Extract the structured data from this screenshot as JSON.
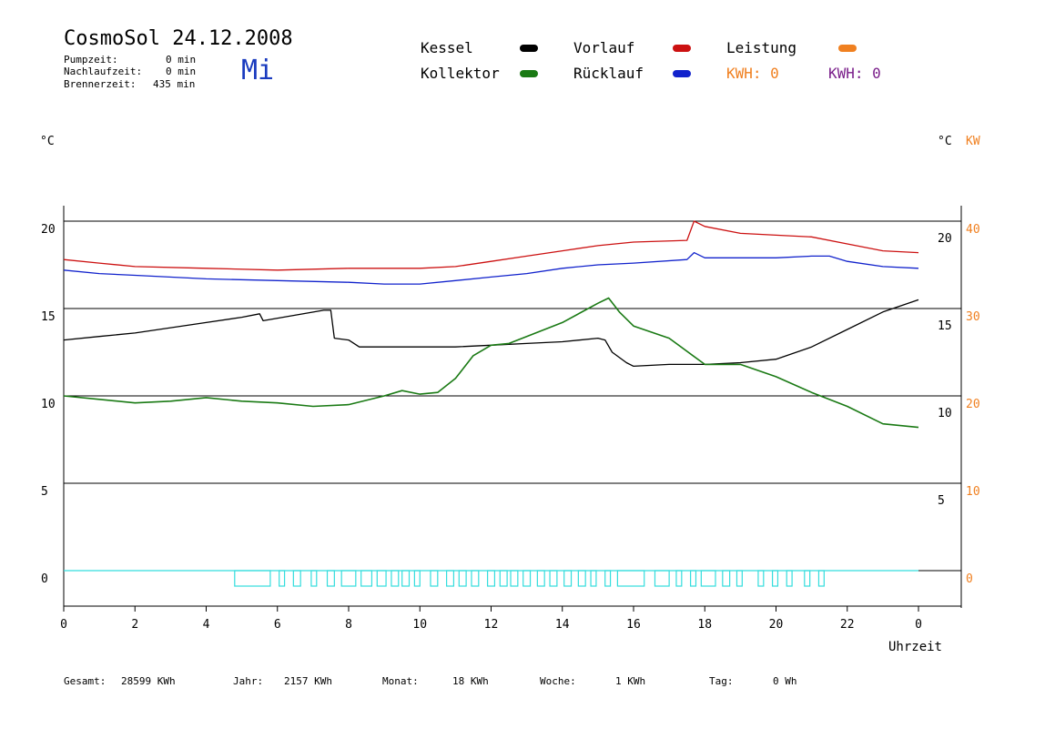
{
  "header": {
    "title": "CosmoSol 24.12.2008",
    "day": "Mi",
    "pumpzeit_label": "Pumpzeit:",
    "pumpzeit_value": "0 min",
    "nachlauf_label": "Nachlaufzeit:",
    "nachlauf_value": "0 min",
    "brenner_label": "Brennerzeit:",
    "brenner_value": "435 min"
  },
  "legend": {
    "kessel": "Kessel",
    "kollektor": "Kollektor",
    "vorlauf": "Vorlauf",
    "ruecklauf": "Rücklauf",
    "leistung": "Leistung",
    "kwh_orange": "KWH: 0",
    "kwh_purple": "KWH: 0",
    "colors": {
      "kessel": "#000000",
      "kollektor": "#1a7a14",
      "vorlauf": "#cc1111",
      "ruecklauf": "#1122cc",
      "leistung": "#f08020",
      "purple": "#7a1e8a",
      "pump": "#33dddd"
    }
  },
  "units": {
    "left": "°C",
    "right_c": "°C",
    "right_kw": "KW"
  },
  "footer": {
    "gesamt_label": "Gesamt:",
    "gesamt_value": "28599 KWh",
    "jahr_label": "Jahr:",
    "jahr_value": "2157 KWh",
    "monat_label": "Monat:",
    "monat_value": "18 KWh",
    "woche_label": "Woche:",
    "woche_value": "1 KWh",
    "tag_label": "Tag:",
    "tag_value": "0 Wh"
  },
  "chart_data": {
    "type": "line",
    "xlabel": "Uhrzeit",
    "x_ticks": [
      "0",
      "2",
      "4",
      "6",
      "8",
      "10",
      "12",
      "14",
      "16",
      "18",
      "20",
      "22",
      "0"
    ],
    "xlim": [
      0,
      24
    ],
    "ylim": [
      -2,
      21
    ],
    "y_ticks_left": [
      0,
      5,
      10,
      15,
      20
    ],
    "y_ticks_right_c": [
      5,
      10,
      15,
      20
    ],
    "y_ticks_right_kw": [
      0,
      10,
      20,
      30,
      40
    ],
    "grid": "horizontal",
    "series": [
      {
        "name": "Vorlauf",
        "color": "#cc1111",
        "points": [
          [
            0,
            17.8
          ],
          [
            1,
            17.6
          ],
          [
            2,
            17.4
          ],
          [
            4,
            17.3
          ],
          [
            6,
            17.2
          ],
          [
            8,
            17.3
          ],
          [
            10,
            17.3
          ],
          [
            11,
            17.4
          ],
          [
            12,
            17.7
          ],
          [
            13,
            18.0
          ],
          [
            14,
            18.3
          ],
          [
            15,
            18.6
          ],
          [
            16,
            18.8
          ],
          [
            17.5,
            18.9
          ],
          [
            17.7,
            20.0
          ],
          [
            18,
            19.7
          ],
          [
            19,
            19.3
          ],
          [
            20,
            19.2
          ],
          [
            21,
            19.1
          ],
          [
            22,
            18.7
          ],
          [
            23,
            18.3
          ],
          [
            24,
            18.2
          ]
        ]
      },
      {
        "name": "Rücklauf",
        "color": "#1122cc",
        "points": [
          [
            0,
            17.2
          ],
          [
            1,
            17.0
          ],
          [
            2,
            16.9
          ],
          [
            4,
            16.7
          ],
          [
            6,
            16.6
          ],
          [
            8,
            16.5
          ],
          [
            9,
            16.4
          ],
          [
            10,
            16.4
          ],
          [
            11,
            16.6
          ],
          [
            12,
            16.8
          ],
          [
            13,
            17.0
          ],
          [
            14,
            17.3
          ],
          [
            15,
            17.5
          ],
          [
            16,
            17.6
          ],
          [
            17.5,
            17.8
          ],
          [
            17.7,
            18.2
          ],
          [
            18,
            17.9
          ],
          [
            20,
            17.9
          ],
          [
            21,
            18.0
          ],
          [
            21.5,
            18.0
          ],
          [
            22,
            17.7
          ],
          [
            23,
            17.4
          ],
          [
            24,
            17.3
          ]
        ]
      },
      {
        "name": "Kessel",
        "color": "#000000",
        "points": [
          [
            0,
            13.2
          ],
          [
            1,
            13.4
          ],
          [
            2,
            13.6
          ],
          [
            3,
            13.9
          ],
          [
            4,
            14.2
          ],
          [
            5,
            14.5
          ],
          [
            5.5,
            14.7
          ],
          [
            5.6,
            14.3
          ],
          [
            7.3,
            14.9
          ],
          [
            7.5,
            14.9
          ],
          [
            7.6,
            13.3
          ],
          [
            8,
            13.2
          ],
          [
            8.3,
            12.8
          ],
          [
            9.5,
            12.8
          ],
          [
            10,
            12.8
          ],
          [
            11,
            12.8
          ],
          [
            12,
            12.9
          ],
          [
            13,
            13.0
          ],
          [
            14,
            13.1
          ],
          [
            15,
            13.3
          ],
          [
            15.2,
            13.2
          ],
          [
            15.4,
            12.5
          ],
          [
            15.8,
            11.9
          ],
          [
            16,
            11.7
          ],
          [
            17,
            11.8
          ],
          [
            18,
            11.8
          ],
          [
            19,
            11.9
          ],
          [
            20,
            12.1
          ],
          [
            21,
            12.8
          ],
          [
            22,
            13.8
          ],
          [
            23,
            14.8
          ],
          [
            24,
            15.5
          ]
        ]
      },
      {
        "name": "Kollektor",
        "color": "#1a7a14",
        "points": [
          [
            0,
            10.0
          ],
          [
            1,
            9.8
          ],
          [
            2,
            9.6
          ],
          [
            3,
            9.7
          ],
          [
            4,
            9.9
          ],
          [
            5,
            9.7
          ],
          [
            6,
            9.6
          ],
          [
            7,
            9.4
          ],
          [
            8,
            9.5
          ],
          [
            9,
            10.0
          ],
          [
            9.5,
            10.3
          ],
          [
            10,
            10.1
          ],
          [
            10.5,
            10.2
          ],
          [
            11,
            11.0
          ],
          [
            11.5,
            12.3
          ],
          [
            12,
            12.9
          ],
          [
            12.5,
            13.0
          ],
          [
            13,
            13.4
          ],
          [
            14,
            14.2
          ],
          [
            15,
            15.3
          ],
          [
            15.3,
            15.6
          ],
          [
            15.6,
            14.8
          ],
          [
            16,
            14.0
          ],
          [
            17,
            13.3
          ],
          [
            18,
            11.8
          ],
          [
            19,
            11.8
          ],
          [
            20,
            11.1
          ],
          [
            21,
            10.2
          ],
          [
            22,
            9.4
          ],
          [
            23,
            8.4
          ],
          [
            24,
            8.2
          ]
        ]
      }
    ],
    "pump_on_intervals": [
      [
        4.8,
        5.8
      ],
      [
        6.05,
        6.2
      ],
      [
        6.45,
        6.65
      ],
      [
        6.95,
        7.1
      ],
      [
        7.4,
        7.6
      ],
      [
        7.8,
        8.2
      ],
      [
        8.35,
        8.65
      ],
      [
        8.8,
        9.05
      ],
      [
        9.2,
        9.4
      ],
      [
        9.5,
        9.7
      ],
      [
        9.85,
        10.0
      ],
      [
        10.3,
        10.5
      ],
      [
        10.75,
        10.95
      ],
      [
        11.1,
        11.3
      ],
      [
        11.45,
        11.65
      ],
      [
        11.9,
        12.1
      ],
      [
        12.25,
        12.45
      ],
      [
        12.55,
        12.75
      ],
      [
        12.9,
        13.1
      ],
      [
        13.3,
        13.5
      ],
      [
        13.65,
        13.85
      ],
      [
        14.05,
        14.25
      ],
      [
        14.45,
        14.65
      ],
      [
        14.8,
        14.95
      ],
      [
        15.2,
        15.35
      ],
      [
        15.55,
        16.3
      ],
      [
        16.6,
        17.0
      ],
      [
        17.2,
        17.35
      ],
      [
        17.6,
        17.75
      ],
      [
        17.9,
        18.3
      ],
      [
        18.5,
        18.7
      ],
      [
        18.9,
        19.05
      ],
      [
        19.5,
        19.65
      ],
      [
        19.9,
        20.05
      ],
      [
        20.3,
        20.45
      ],
      [
        20.8,
        20.95
      ],
      [
        21.2,
        21.35
      ]
    ]
  }
}
